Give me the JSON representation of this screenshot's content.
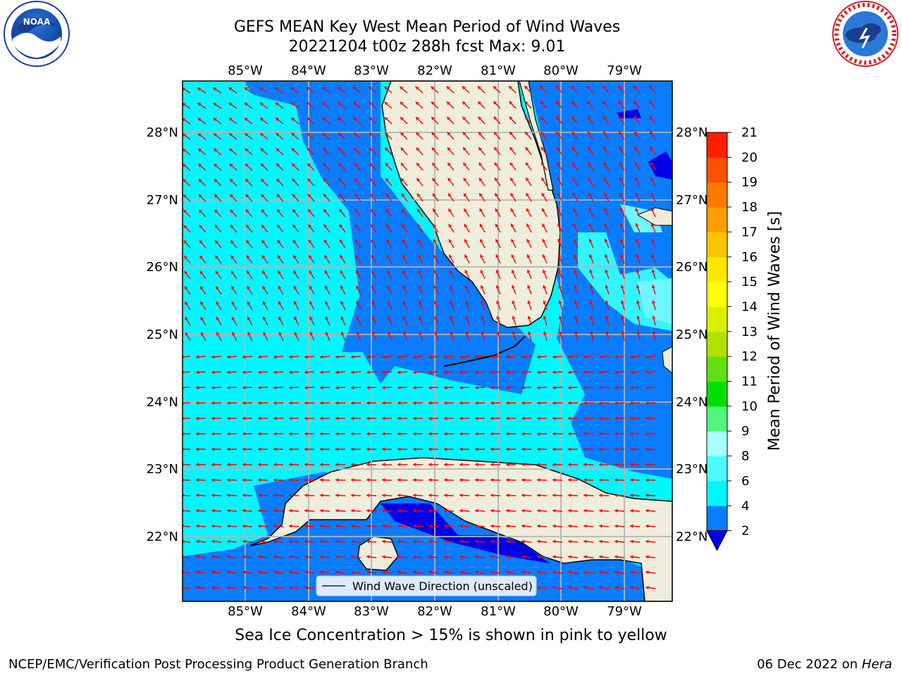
{
  "title_line1": "GEFS MEAN Key West Mean Period of Wind Waves",
  "title_line2": "20221204 t00z 288h fcst   Max: 9.01",
  "logos": {
    "left": {
      "icon": "noaa-logo",
      "text": "NOAA"
    },
    "right": {
      "icon": "nws-logo",
      "text": "NATIONAL WEATHER SERVICE"
    }
  },
  "axes": {
    "lon_labels": [
      "85°W",
      "84°W",
      "83°W",
      "82°W",
      "81°W",
      "80°W",
      "79°W"
    ],
    "lat_labels": [
      "28°N",
      "27°N",
      "26°N",
      "25°N",
      "24°N",
      "23°N",
      "22°N"
    ]
  },
  "legend": {
    "label": "Wind Wave Direction (unscaled)"
  },
  "colorbar": {
    "label": "Mean Period of Wind Waves [s]",
    "ticks": [
      "2",
      "4",
      "6",
      "8",
      "9",
      "10",
      "11",
      "12",
      "13",
      "14",
      "15",
      "16",
      "17",
      "18",
      "19",
      "20",
      "21"
    ],
    "colors": [
      "#0a7cff",
      "#00f5ff",
      "#4cfbfb",
      "#a8ffff",
      "#50f57a",
      "#00e000",
      "#60e010",
      "#b0e000",
      "#d8f000",
      "#ffff00",
      "#ffe800",
      "#ffc400",
      "#ff9c00",
      "#ff7800",
      "#ff5000",
      "#ff1e00"
    ],
    "under_color": "#0000e8"
  },
  "colors": {
    "land": "#efeddb",
    "sea_light": "#00f7ff",
    "sea_mid": "#0a7cff",
    "sea_dark": "#0000e6",
    "sea_pale": "#6ff7ff",
    "arrow": "#ff0000",
    "grid": "#b4b4b4"
  },
  "bottom_note": "Sea Ice Concentration > 15% is shown in pink to yellow",
  "footer_left": "NCEP/EMC/Verification Post Processing Product Generation Branch",
  "footer_right_date": "06 Dec 2022 on",
  "footer_right_host": "Hera"
}
